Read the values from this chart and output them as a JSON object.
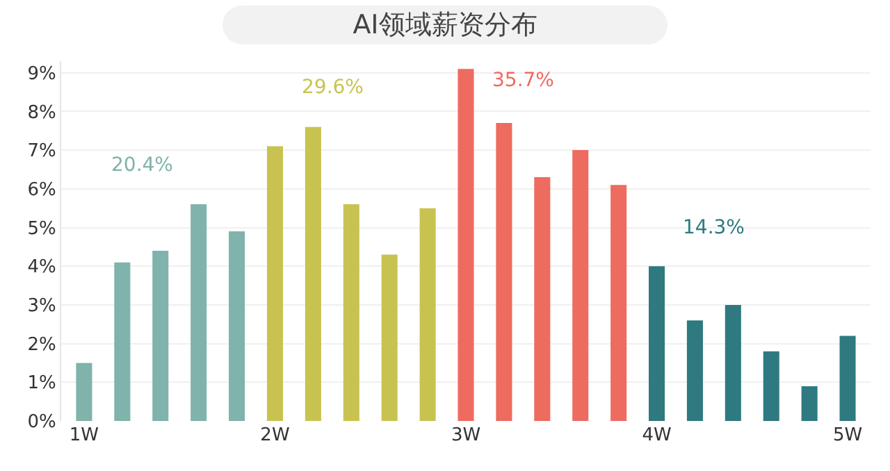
{
  "chart_data": {
    "type": "bar",
    "title": "AI领域薪资分布",
    "categories": [
      "1W",
      null,
      null,
      null,
      null,
      "2W",
      null,
      null,
      null,
      null,
      "3W",
      null,
      null,
      null,
      null,
      "4W",
      null,
      null,
      null,
      null,
      "5W"
    ],
    "values": [
      1.5,
      4.1,
      4.4,
      5.6,
      4.9,
      7.1,
      7.6,
      5.6,
      4.3,
      5.5,
      9.1,
      7.7,
      6.3,
      7.0,
      6.1,
      4.0,
      2.6,
      3.0,
      1.8,
      0.9,
      2.2
    ],
    "colors": [
      "#7fb3ab",
      "#7fb3ab",
      "#7fb3ab",
      "#7fb3ab",
      "#7fb3ab",
      "#c8c350",
      "#c8c350",
      "#c8c350",
      "#c8c350",
      "#c8c350",
      "#ee6b5f",
      "#ee6b5f",
      "#ee6b5f",
      "#ee6b5f",
      "#ee6b5f",
      "#2e7a80",
      "#2e7a80",
      "#2e7a80",
      "#2e7a80",
      "#2e7a80",
      "#2e7a80"
    ],
    "annotations": [
      "20.4%",
      "29.6%",
      "35.7%",
      "14.3%"
    ],
    "ylim": [
      0,
      9.3
    ],
    "yticks": [
      {
        "value": 0,
        "label": "0%"
      },
      {
        "value": 1,
        "label": "1%"
      },
      {
        "value": 2,
        "label": "2%"
      },
      {
        "value": 3,
        "label": "3%"
      },
      {
        "value": 4,
        "label": "4%"
      },
      {
        "value": 5,
        "label": "5%"
      },
      {
        "value": 6,
        "label": "6%"
      },
      {
        "value": 7,
        "label": "7%"
      },
      {
        "value": 8,
        "label": "8%"
      },
      {
        "value": 9,
        "label": "9%"
      }
    ],
    "grid": "y"
  }
}
